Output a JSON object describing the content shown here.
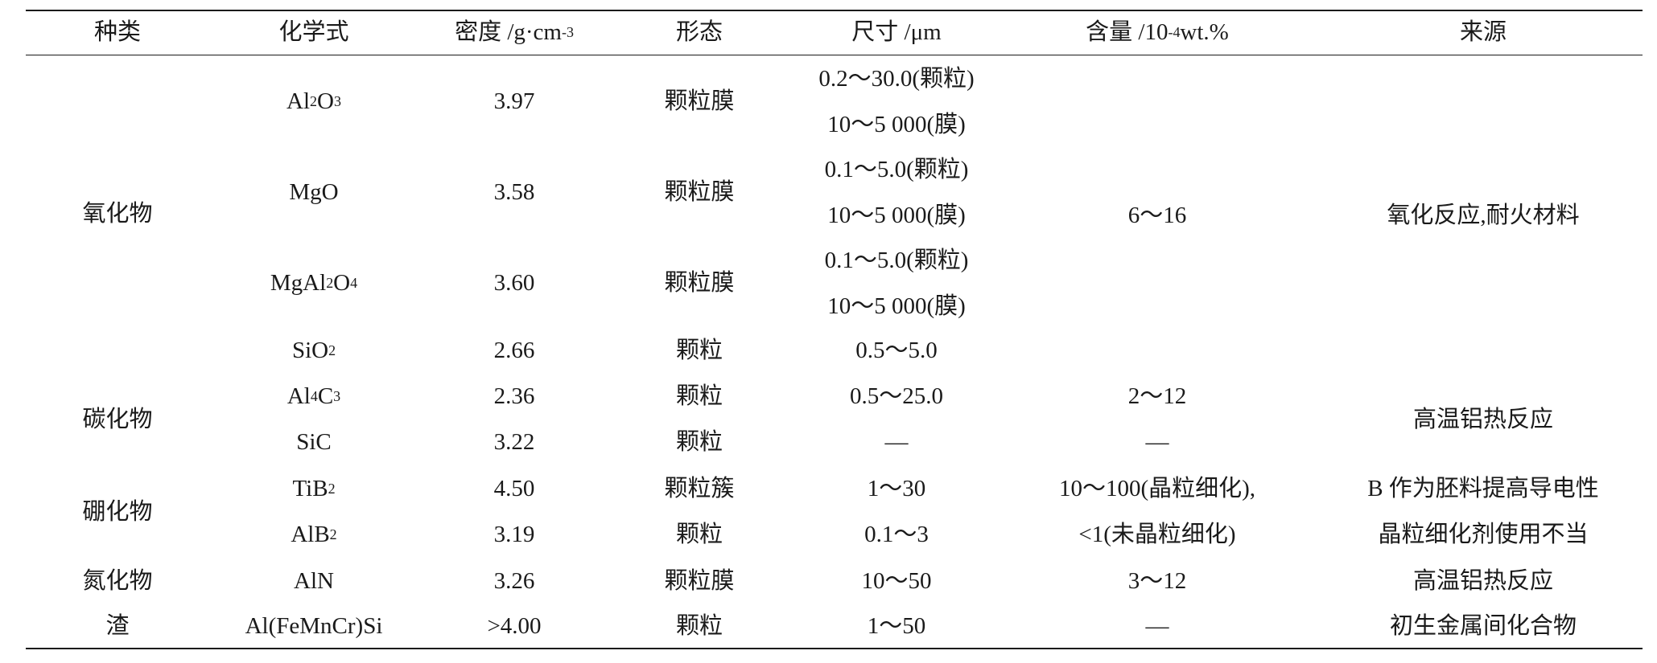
{
  "table": {
    "headers": {
      "category": "种类",
      "formula": "化学式",
      "density_pre": "密度 /g·cm",
      "density_sup": "-3",
      "morphology": "形态",
      "size": "尺寸 /μm",
      "content_pre": "含量 /10",
      "content_sup": "-4",
      "content_post": " wt.%",
      "source": "来源"
    },
    "categories": {
      "oxide": "氧化物",
      "carbide": "碳化物",
      "boride": "硼化物",
      "nitride": "氮化物",
      "slag": "渣"
    },
    "formulas": {
      "al2o3": [
        "Al",
        "2",
        "O",
        "3"
      ],
      "mgo": "MgO",
      "mgal2o4": [
        "MgAl",
        "2",
        "O",
        "4"
      ],
      "sio2": [
        "SiO",
        "2"
      ],
      "al4c3": [
        "Al",
        "4",
        "C",
        "3"
      ],
      "sic": "SiC",
      "tib2": [
        "TiB",
        "2"
      ],
      "alb2": [
        "AlB",
        "2"
      ],
      "aln": "AlN",
      "slag": "Al(FeMnCr)Si"
    },
    "density": {
      "al2o3": "3.97",
      "mgo": "3.58",
      "mgal2o4": "3.60",
      "sio2": "2.66",
      "al4c3": "2.36",
      "sic": "3.22",
      "tib2": "4.50",
      "alb2": "3.19",
      "aln": "3.26",
      "slag": ">4.00"
    },
    "morphology": {
      "al2o3": "颗粒膜",
      "mgo": "颗粒膜",
      "mgal2o4": "颗粒膜",
      "sio2": "颗粒",
      "al4c3": "颗粒",
      "sic": "颗粒",
      "tib2": "颗粒簇",
      "alb2": "颗粒",
      "aln": "颗粒膜",
      "slag": "颗粒"
    },
    "size": {
      "al2o3_a": "0.2～30.0(颗粒)",
      "al2o3_b": "10～5 000(膜)",
      "mgo_a": "0.1～5.0(颗粒)",
      "mgo_b": "10～5 000(膜)",
      "mgal2o4_a": "0.1～5.0(颗粒)",
      "mgal2o4_b": "10～5 000(膜)",
      "sio2": "0.5～5.0",
      "al4c3": "0.5～25.0",
      "sic": "—",
      "tib2": "1～30",
      "alb2": "0.1～3",
      "aln": "10～50",
      "slag": "1～50"
    },
    "content": {
      "oxide": "6～16",
      "al4c3": "2～12",
      "sic": "—",
      "boride_a": "10～100(晶粒细化),",
      "boride_b": "<1(未晶粒细化)",
      "aln": "3～12",
      "slag": "—"
    },
    "source": {
      "oxide": "氧化反应,耐火材料",
      "carbide": "高温铝热反应",
      "boride_a": "B 作为胚料提高导电性",
      "boride_b": "晶粒细化剂使用不当",
      "aln": "高温铝热反应",
      "slag": "初生金属间化合物"
    }
  }
}
